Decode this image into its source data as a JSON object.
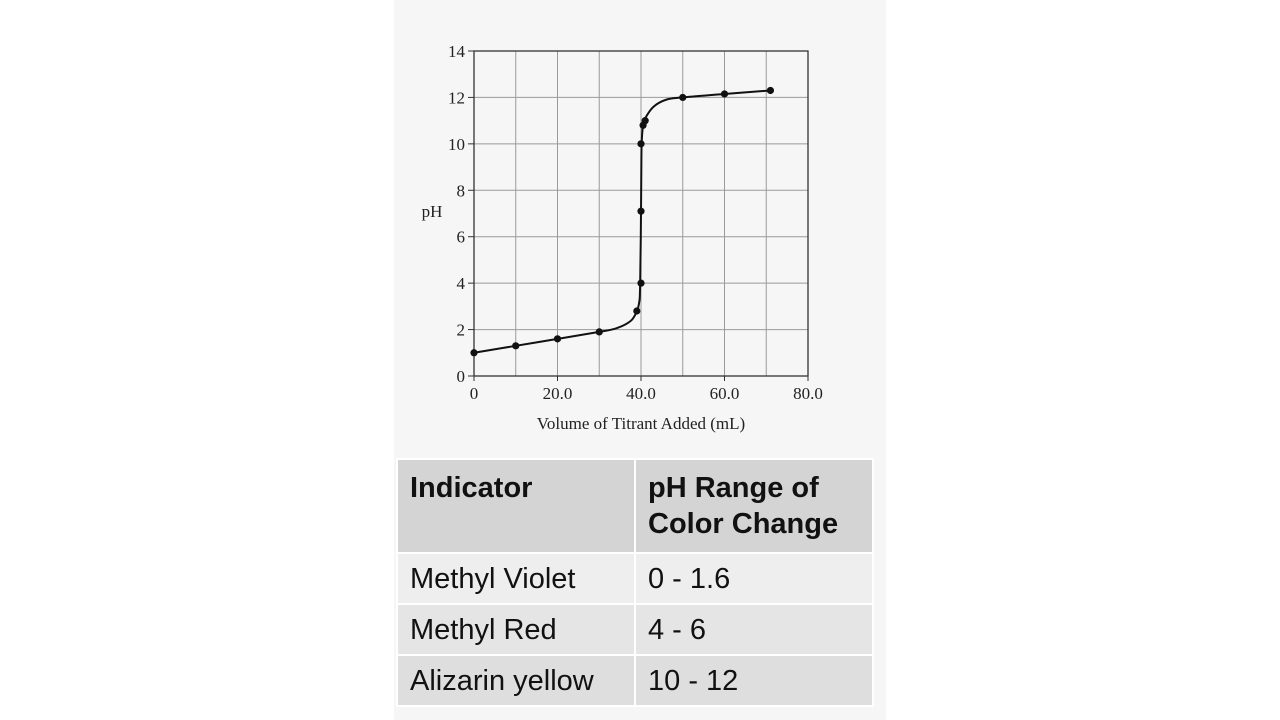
{
  "chart_data": {
    "type": "line",
    "title": "",
    "xlabel": "Volume of Titrant Added (mL)",
    "ylabel": "pH",
    "xlim": [
      0,
      80
    ],
    "ylim": [
      0,
      14
    ],
    "x_ticks": [
      0,
      20,
      40,
      60,
      80
    ],
    "x_tick_labels": [
      "0",
      "20.0",
      "40.0",
      "60.0",
      "80.0"
    ],
    "y_ticks": [
      0,
      2,
      4,
      6,
      8,
      10,
      12,
      14
    ],
    "y_tick_labels": [
      "0",
      "2",
      "4",
      "6",
      "8",
      "10",
      "12",
      "14"
    ],
    "grid": true,
    "legend": "none",
    "points": {
      "x": [
        0,
        10,
        20,
        30,
        39,
        40,
        40,
        40,
        40.5,
        41,
        50,
        60,
        71
      ],
      "y": [
        1.0,
        1.3,
        1.6,
        1.9,
        2.8,
        4.0,
        7.1,
        10.0,
        10.8,
        11.0,
        12.0,
        12.15,
        12.3
      ]
    },
    "curve": {
      "x": [
        0,
        10,
        20,
        30,
        34,
        37,
        38.5,
        39.5,
        39.8,
        40,
        40.1,
        40.2,
        40.5,
        41,
        43,
        46,
        50,
        60,
        71
      ],
      "y": [
        1.0,
        1.3,
        1.6,
        1.9,
        2.05,
        2.3,
        2.6,
        3.1,
        4.0,
        7.0,
        9.5,
        10.2,
        10.8,
        11.1,
        11.6,
        11.9,
        12.0,
        12.15,
        12.3
      ]
    },
    "colors": {
      "line": "#111111",
      "grid": "#9a9a9a",
      "axis": "#333333"
    }
  },
  "table": {
    "headers": [
      "Indicator",
      "pH Range of Color Change"
    ],
    "rows": [
      [
        "Methyl Violet",
        "0 - 1.6"
      ],
      [
        "Methyl Red",
        "4 - 6"
      ],
      [
        "Alizarin yellow",
        "10 - 12"
      ]
    ]
  }
}
